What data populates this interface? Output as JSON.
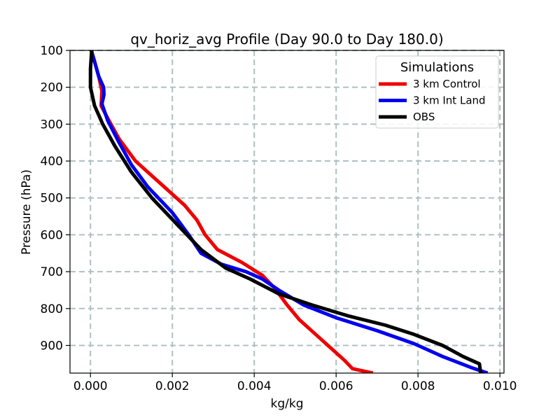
{
  "chart_data": {
    "type": "line",
    "title": "qv_horiz_avg Profile (Day 90.0 to Day 180.0)",
    "xlabel": "kg/kg",
    "ylabel": "Pressure (hPa)",
    "xlim": [
      -0.0005,
      0.0101
    ],
    "ylim": [
      975,
      100
    ],
    "y_inverted": true,
    "grid": true,
    "grid_style": "dashed",
    "x_ticks": [
      0.0,
      0.002,
      0.004,
      0.006,
      0.008,
      0.01
    ],
    "x_tick_labels": [
      "0.000",
      "0.002",
      "0.004",
      "0.006",
      "0.008",
      "0.010"
    ],
    "y_ticks": [
      100,
      200,
      300,
      400,
      500,
      600,
      700,
      800,
      900
    ],
    "y_tick_labels": [
      "100",
      "200",
      "300",
      "400",
      "500",
      "600",
      "700",
      "800",
      "900"
    ],
    "legend": {
      "title": "Simulations",
      "position": "top-right"
    },
    "series": [
      {
        "name": "3 km Control",
        "color": "#ee0000",
        "points": [
          [
            2e-05,
            100
          ],
          [
            0.0001,
            130
          ],
          [
            0.0002,
            170
          ],
          [
            0.00028,
            210
          ],
          [
            0.00026,
            250
          ],
          [
            0.00045,
            290
          ],
          [
            0.0007,
            340
          ],
          [
            0.0011,
            400
          ],
          [
            0.0017,
            460
          ],
          [
            0.0023,
            520
          ],
          [
            0.0026,
            560
          ],
          [
            0.0028,
            600
          ],
          [
            0.0031,
            640
          ],
          [
            0.0037,
            675
          ],
          [
            0.0042,
            710
          ],
          [
            0.0045,
            745
          ],
          [
            0.0048,
            790
          ],
          [
            0.0051,
            830
          ],
          [
            0.0055,
            870
          ],
          [
            0.0059,
            910
          ],
          [
            0.0062,
            940
          ],
          [
            0.0064,
            963
          ],
          [
            0.0069,
            975
          ]
        ]
      },
      {
        "name": "3 km Int Land",
        "color": "#0000ee",
        "points": [
          [
            2e-05,
            100
          ],
          [
            0.0001,
            130
          ],
          [
            0.0002,
            170
          ],
          [
            0.00032,
            200
          ],
          [
            0.00033,
            220
          ],
          [
            0.00028,
            245
          ],
          [
            0.00042,
            290
          ],
          [
            0.0007,
            350
          ],
          [
            0.001,
            410
          ],
          [
            0.0014,
            470
          ],
          [
            0.002,
            540
          ],
          [
            0.0024,
            600
          ],
          [
            0.0027,
            650
          ],
          [
            0.0032,
            680
          ],
          [
            0.0038,
            700
          ],
          [
            0.0042,
            720
          ],
          [
            0.0046,
            750
          ],
          [
            0.0052,
            790
          ],
          [
            0.006,
            825
          ],
          [
            0.007,
            860
          ],
          [
            0.0079,
            895
          ],
          [
            0.0086,
            930
          ],
          [
            0.0093,
            960
          ],
          [
            0.0097,
            975
          ]
        ]
      },
      {
        "name": "OBS",
        "color": "#000000",
        "points": [
          [
            3e-05,
            100
          ],
          [
            0.0,
            150
          ],
          [
            0.0,
            200
          ],
          [
            0.0001,
            250
          ],
          [
            0.0003,
            300
          ],
          [
            0.0006,
            360
          ],
          [
            0.001,
            430
          ],
          [
            0.0015,
            500
          ],
          [
            0.0021,
            570
          ],
          [
            0.0027,
            640
          ],
          [
            0.0033,
            690
          ],
          [
            0.0039,
            720
          ],
          [
            0.0046,
            760
          ],
          [
            0.0054,
            790
          ],
          [
            0.0063,
            820
          ],
          [
            0.0072,
            845
          ],
          [
            0.0079,
            870
          ],
          [
            0.0086,
            900
          ],
          [
            0.0091,
            930
          ],
          [
            0.0095,
            950
          ],
          [
            0.00953,
            975
          ]
        ]
      }
    ]
  }
}
